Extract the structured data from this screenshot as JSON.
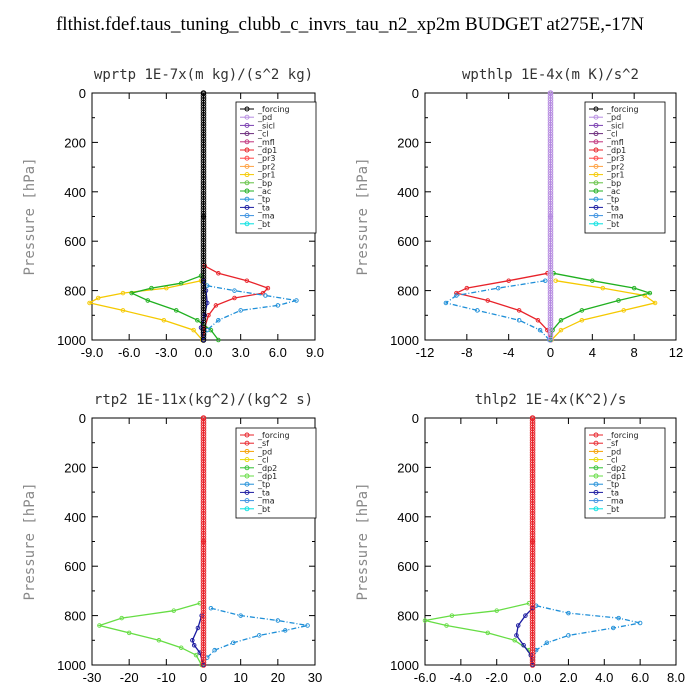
{
  "title": "flthist.fdef.taus_tuning_clubb_c_invrs_tau_n2_xp2m  BUDGET at275E,-17N",
  "chart_data": [
    {
      "type": "line",
      "title": "wprtp  1E-7x(m kg)/(s^2 kg)",
      "ylabel": "Pressure [hPa]",
      "xlim": [
        -9.0,
        9.0
      ],
      "xticks": [
        "-9.0",
        "-6.0",
        "-3.0",
        "0.0",
        "3.0",
        "6.0",
        "9.0"
      ],
      "ylim": [
        1000,
        0
      ],
      "yticks": [
        "0",
        "200",
        "400",
        "600",
        "800",
        "1000"
      ],
      "legend": [
        "_forcing",
        "_pd",
        "_sicl",
        "_cl",
        "_mfl",
        "_dp1",
        "_pr3",
        "_pr2",
        "_pr1",
        "_bp",
        "_ac",
        "_tp",
        "_ta",
        "_ma",
        "_bt"
      ],
      "series": [
        {
          "name": "_forcing",
          "color": "#000000",
          "p": [
            0,
            500,
            1000
          ],
          "x": [
            0,
            0,
            0
          ]
        },
        {
          "name": "_dp1",
          "color": "#e8232a",
          "p": [
            700,
            730,
            760,
            790,
            810,
            830,
            860,
            900,
            950,
            1000
          ],
          "x": [
            0.1,
            1.2,
            3.5,
            5.2,
            4.8,
            2.5,
            1.0,
            0.4,
            0.1,
            0
          ]
        },
        {
          "name": "_pr1",
          "color": "#f5c900",
          "p": [
            760,
            790,
            810,
            830,
            850,
            880,
            920,
            960,
            1000
          ],
          "x": [
            -0.2,
            -3.0,
            -6.5,
            -8.5,
            -9.2,
            -6.5,
            -3.2,
            -0.8,
            -0.1
          ]
        },
        {
          "name": "_ac",
          "color": "#20b020",
          "p": [
            740,
            770,
            790,
            810,
            840,
            880,
            920,
            960,
            1000
          ],
          "x": [
            -0.2,
            -1.8,
            -4.2,
            -5.8,
            -4.5,
            -2.2,
            -0.5,
            0.6,
            1.2
          ]
        },
        {
          "name": "_tp",
          "color": "#1f8fd8",
          "p": [
            780,
            800,
            820,
            840,
            860,
            880,
            920,
            960,
            1000
          ],
          "x": [
            0.3,
            2.5,
            5.0,
            7.5,
            6.0,
            3.0,
            1.2,
            0.3,
            0
          ]
        },
        {
          "name": "_ta",
          "color": "#1a1aa0",
          "p": [
            760,
            800,
            850,
            900,
            950,
            1000
          ],
          "x": [
            0,
            0.2,
            0.3,
            0.1,
            -0.2,
            0
          ]
        }
      ]
    },
    {
      "type": "line",
      "title": "wpthlp  1E-4x(m K)/s^2",
      "ylabel": "Pressure [hPa]",
      "xlim": [
        -12,
        12
      ],
      "xticks": [
        "-12",
        "-8",
        "-4",
        "0",
        "4",
        "8",
        "12"
      ],
      "ylim": [
        1000,
        0
      ],
      "yticks": [
        "0",
        "200",
        "400",
        "600",
        "800",
        "1000"
      ],
      "legend": [
        "_forcing",
        "_pd",
        "_sicl",
        "_cl",
        "_mfl",
        "_dp1",
        "_pr3",
        "_pr2",
        "_pr1",
        "_bp",
        "_ac",
        "_tp",
        "_ta",
        "_ma",
        "_bt"
      ],
      "series": [
        {
          "name": "_pd",
          "color": "#b58be0",
          "p": [
            0,
            500,
            1000
          ],
          "x": [
            0,
            0,
            0
          ]
        },
        {
          "name": "_dp1",
          "color": "#e8232a",
          "p": [
            730,
            760,
            790,
            810,
            840,
            880,
            920,
            960,
            1000
          ],
          "x": [
            -0.3,
            -4.0,
            -8.0,
            -9.0,
            -6.0,
            -3.0,
            -1.2,
            -0.3,
            0
          ]
        },
        {
          "name": "_pr1",
          "color": "#f5c900",
          "p": [
            760,
            790,
            820,
            850,
            880,
            920,
            960,
            1000
          ],
          "x": [
            0.5,
            5.0,
            9.0,
            10.0,
            7.0,
            3.0,
            1.0,
            0.1
          ]
        },
        {
          "name": "_ac",
          "color": "#20b020",
          "p": [
            730,
            760,
            790,
            810,
            840,
            880,
            920,
            960,
            1000
          ],
          "x": [
            0.3,
            4.0,
            8.0,
            9.5,
            6.5,
            3.0,
            1.0,
            0.2,
            0
          ]
        },
        {
          "name": "_tp",
          "color": "#1f8fd8",
          "p": [
            760,
            790,
            820,
            850,
            880,
            920,
            960,
            1000
          ],
          "x": [
            -0.5,
            -5.0,
            -9.0,
            -10.0,
            -7.0,
            -3.0,
            -1.0,
            -0.1
          ]
        }
      ]
    },
    {
      "type": "line",
      "title": "rtp2  1E-11x(kg^2)/(kg^2 s)",
      "ylabel": "Pressure [hPa]",
      "xlim": [
        -30,
        30
      ],
      "xticks": [
        "-30",
        "-20",
        "-10",
        "0",
        "10",
        "20",
        "30"
      ],
      "ylim": [
        1000,
        0
      ],
      "yticks": [
        "0",
        "200",
        "400",
        "600",
        "800",
        "1000"
      ],
      "legend": [
        "_forcing",
        "_sf",
        "_pd",
        "_cl",
        "_dp2",
        "_dp1",
        "_tp",
        "_ta",
        "_ma",
        "_bt"
      ],
      "series": [
        {
          "name": "_forcing",
          "color": "#e8232a",
          "p": [
            0,
            500,
            1000
          ],
          "x": [
            0,
            0,
            0
          ]
        },
        {
          "name": "_dp1",
          "color": "#66dd44",
          "p": [
            750,
            780,
            810,
            840,
            870,
            900,
            930,
            960,
            1000
          ],
          "x": [
            -1.0,
            -8.0,
            -22.0,
            -28.0,
            -20.0,
            -12.0,
            -6.0,
            -2.0,
            -0.5
          ]
        },
        {
          "name": "_tp",
          "color": "#1f8fd8",
          "p": [
            770,
            800,
            820,
            840,
            860,
            880,
            910,
            940,
            970,
            1000
          ],
          "x": [
            2.0,
            10.0,
            20.0,
            28.0,
            22.0,
            15.0,
            8.0,
            3.0,
            1.0,
            0
          ]
        },
        {
          "name": "_ta",
          "color": "#1a1aa0",
          "p": [
            800,
            850,
            900,
            920,
            950,
            1000
          ],
          "x": [
            -0.5,
            -1.5,
            -3.0,
            -2.5,
            -1.0,
            0
          ]
        }
      ]
    },
    {
      "type": "line",
      "title": "thlp2  1E-4x(K^2)/s",
      "ylabel": "Pressure [hPa]",
      "xlim": [
        -6.0,
        8.0
      ],
      "xticks": [
        "-6.0",
        "-4.0",
        "-2.0",
        "0.0",
        "2.0",
        "4.0",
        "6.0",
        "8.0"
      ],
      "ylim": [
        1000,
        0
      ],
      "yticks": [
        "0",
        "200",
        "400",
        "600",
        "800",
        "1000"
      ],
      "legend": [
        "_forcing",
        "_sf",
        "_pd",
        "_cl",
        "_dp2",
        "_dp1",
        "_tp",
        "_ta",
        "_ma",
        "_bt"
      ],
      "series": [
        {
          "name": "_forcing",
          "color": "#e8232a",
          "p": [
            0,
            500,
            1000
          ],
          "x": [
            0,
            0,
            0
          ]
        },
        {
          "name": "_dp1",
          "color": "#66dd44",
          "p": [
            750,
            780,
            800,
            820,
            840,
            870,
            900,
            940,
            1000
          ],
          "x": [
            -0.2,
            -2.0,
            -4.5,
            -6.0,
            -4.8,
            -2.5,
            -1.0,
            -0.2,
            0
          ]
        },
        {
          "name": "_tp",
          "color": "#1f8fd8",
          "p": [
            760,
            790,
            810,
            830,
            850,
            880,
            910,
            940,
            1000
          ],
          "x": [
            0.2,
            2.0,
            4.8,
            6.0,
            4.5,
            2.0,
            0.8,
            0.2,
            0
          ]
        },
        {
          "name": "_ta",
          "color": "#1a1aa0",
          "p": [
            770,
            800,
            840,
            880,
            920,
            960,
            1000
          ],
          "x": [
            0,
            -0.4,
            -0.8,
            -0.9,
            -0.5,
            -0.1,
            0
          ]
        }
      ]
    }
  ]
}
